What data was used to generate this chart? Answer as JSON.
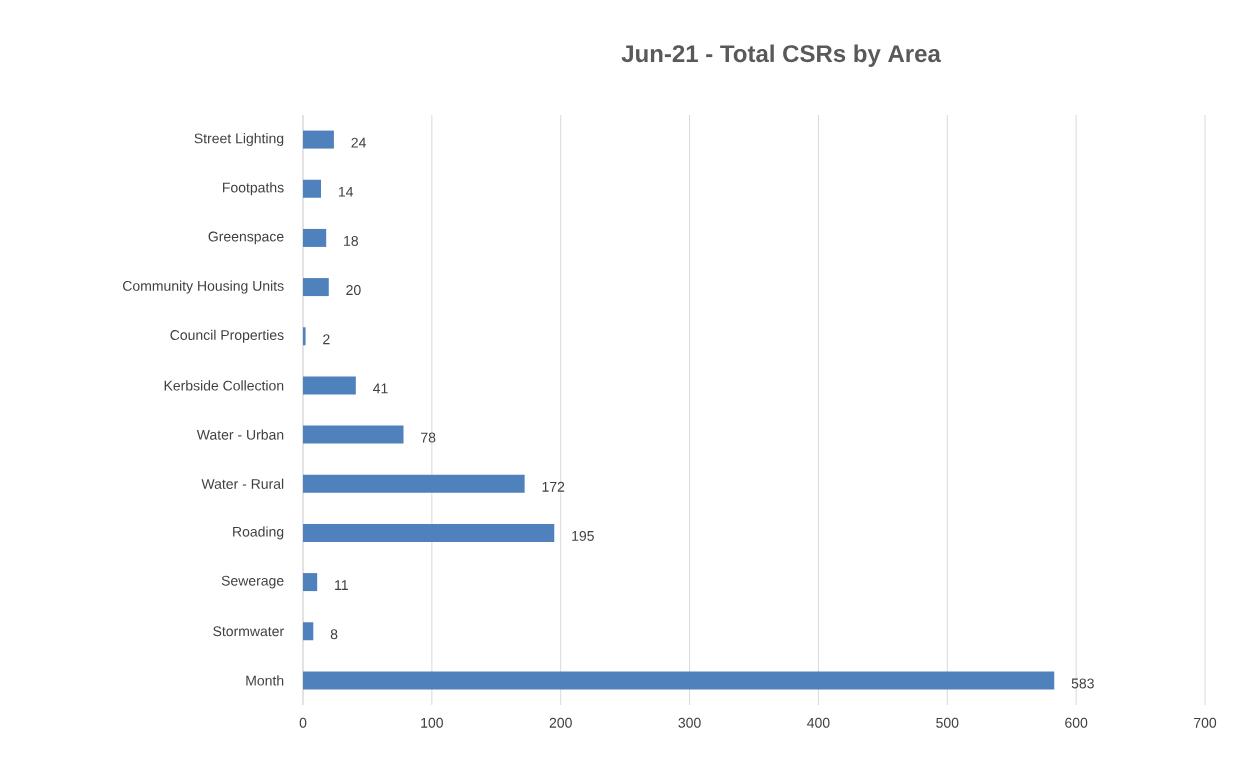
{
  "chart_data": {
    "type": "bar",
    "orientation": "horizontal",
    "title": "Jun-21 - Total CSRs by Area",
    "categories": [
      "Street Lighting",
      "Footpaths",
      "Greenspace",
      "Community Housing Units",
      "Council Properties",
      "Kerbside Collection",
      "Water - Urban",
      "Water - Rural",
      "Roading",
      "Sewerage",
      "Stormwater",
      "Month"
    ],
    "values": [
      24,
      14,
      18,
      20,
      2,
      41,
      78,
      172,
      195,
      11,
      8,
      583
    ],
    "color": "#4f81bd",
    "xlim": [
      0,
      700
    ],
    "xticks": [
      0,
      100,
      200,
      300,
      400,
      500,
      600,
      700
    ],
    "grid": "x",
    "data_labels": true
  }
}
